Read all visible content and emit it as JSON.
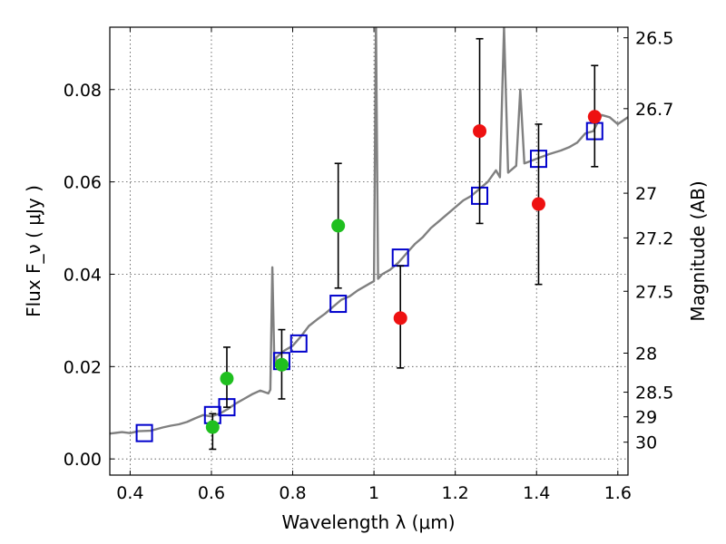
{
  "chart_data": {
    "type": "scatter",
    "title": "",
    "xlabel": "Wavelength  λ (μm)",
    "ylabel": "Flux  F_ν  ( μJy )",
    "ylabel_right": "Magnitude (AB)",
    "xlim": [
      0.35,
      1.625
    ],
    "ylim": [
      -0.0035,
      0.0935
    ],
    "grid": true,
    "x_ticks": [
      0.4,
      0.6,
      0.8,
      1.0,
      1.2,
      1.4,
      1.6
    ],
    "x_tick_labels": [
      "0.4",
      "0.6",
      "0.8",
      "1",
      "1.2",
      "1.4",
      "1.6"
    ],
    "y_ticks": [
      0.0,
      0.02,
      0.04,
      0.06,
      0.08
    ],
    "y_tick_labels": [
      "0.00",
      "0.02",
      "0.04",
      "0.06",
      "0.08"
    ],
    "mag_ticks": [
      26.5,
      26.7,
      27,
      27.2,
      27.5,
      28,
      28.5,
      29,
      30
    ],
    "mag_tick_labels": [
      "26.5",
      "26.7",
      "27",
      "27.2",
      "27.5",
      "28",
      "28.5",
      "29",
      "30"
    ],
    "colors": {
      "spectrum": "#808080",
      "model": "#0000cc",
      "optical": "#1fbf1f",
      "infrared": "#ee1111",
      "errorbar": "#000000"
    },
    "series": [
      {
        "kind": "line",
        "points": [
          [
            0.35,
            0.0055
          ],
          [
            0.38,
            0.0058
          ],
          [
            0.4,
            0.0056
          ],
          [
            0.42,
            0.006
          ],
          [
            0.45,
            0.0061
          ],
          [
            0.48,
            0.0068
          ],
          [
            0.5,
            0.0072
          ],
          [
            0.52,
            0.0075
          ],
          [
            0.54,
            0.008
          ],
          [
            0.56,
            0.0088
          ],
          [
            0.58,
            0.0095
          ],
          [
            0.6,
            0.0092
          ],
          [
            0.62,
            0.0098
          ],
          [
            0.64,
            0.0108
          ],
          [
            0.66,
            0.012
          ],
          [
            0.68,
            0.013
          ],
          [
            0.7,
            0.014
          ],
          [
            0.72,
            0.0148
          ],
          [
            0.74,
            0.0142
          ],
          [
            0.745,
            0.015
          ],
          [
            0.75,
            0.0415
          ],
          [
            0.755,
            0.02
          ],
          [
            0.76,
            0.022
          ],
          [
            0.78,
            0.0235
          ],
          [
            0.8,
            0.0245
          ],
          [
            0.82,
            0.0265
          ],
          [
            0.84,
            0.0288
          ],
          [
            0.86,
            0.0302
          ],
          [
            0.88,
            0.0315
          ],
          [
            0.9,
            0.033
          ],
          [
            0.92,
            0.0345
          ],
          [
            0.94,
            0.0352
          ],
          [
            0.96,
            0.0365
          ],
          [
            0.98,
            0.0375
          ],
          [
            0.99,
            0.038
          ],
          [
            1.0,
            0.0385
          ],
          [
            1.005,
            0.095
          ],
          [
            1.01,
            0.039
          ],
          [
            1.02,
            0.04
          ],
          [
            1.04,
            0.041
          ],
          [
            1.06,
            0.0425
          ],
          [
            1.08,
            0.0445
          ],
          [
            1.1,
            0.0465
          ],
          [
            1.12,
            0.048
          ],
          [
            1.14,
            0.05
          ],
          [
            1.16,
            0.0515
          ],
          [
            1.18,
            0.053
          ],
          [
            1.2,
            0.0545
          ],
          [
            1.22,
            0.056
          ],
          [
            1.24,
            0.057
          ],
          [
            1.26,
            0.0585
          ],
          [
            1.28,
            0.06
          ],
          [
            1.3,
            0.0625
          ],
          [
            1.31,
            0.061
          ],
          [
            1.32,
            0.0935
          ],
          [
            1.33,
            0.062
          ],
          [
            1.35,
            0.0635
          ],
          [
            1.36,
            0.08
          ],
          [
            1.37,
            0.064
          ],
          [
            1.4,
            0.065
          ],
          [
            1.43,
            0.066
          ],
          [
            1.46,
            0.0668
          ],
          [
            1.48,
            0.0675
          ],
          [
            1.5,
            0.0685
          ],
          [
            1.52,
            0.0705
          ],
          [
            1.54,
            0.071
          ],
          [
            1.55,
            0.0728
          ],
          [
            1.56,
            0.0745
          ],
          [
            1.58,
            0.074
          ],
          [
            1.6,
            0.0725
          ],
          [
            1.625,
            0.074
          ]
        ]
      },
      {
        "kind": "model_squares",
        "points": [
          [
            0.435,
            0.0056
          ],
          [
            0.603,
            0.0095
          ],
          [
            0.638,
            0.0112
          ],
          [
            0.773,
            0.0212
          ],
          [
            0.815,
            0.025
          ],
          [
            0.912,
            0.0336
          ],
          [
            1.065,
            0.0436
          ],
          [
            1.26,
            0.057
          ],
          [
            1.405,
            0.065
          ],
          [
            1.543,
            0.071
          ]
        ]
      },
      {
        "kind": "optical_points",
        "points": [
          {
            "x": 0.603,
            "y": 0.0069,
            "lo": 0.0021,
            "hi": 0.0098
          },
          {
            "x": 0.638,
            "y": 0.0174,
            "lo": 0.0112,
            "hi": 0.0242
          },
          {
            "x": 0.773,
            "y": 0.0204,
            "lo": 0.013,
            "hi": 0.028
          },
          {
            "x": 0.912,
            "y": 0.0505,
            "lo": 0.037,
            "hi": 0.064
          }
        ]
      },
      {
        "kind": "infrared_points",
        "points": [
          {
            "x": 1.065,
            "y": 0.0305,
            "lo": 0.0197,
            "hi": 0.0418
          },
          {
            "x": 1.26,
            "y": 0.071,
            "lo": 0.051,
            "hi": 0.091
          },
          {
            "x": 1.405,
            "y": 0.0552,
            "lo": 0.0378,
            "hi": 0.0725
          },
          {
            "x": 1.543,
            "y": 0.0741,
            "lo": 0.0633,
            "hi": 0.0852
          }
        ]
      }
    ]
  }
}
